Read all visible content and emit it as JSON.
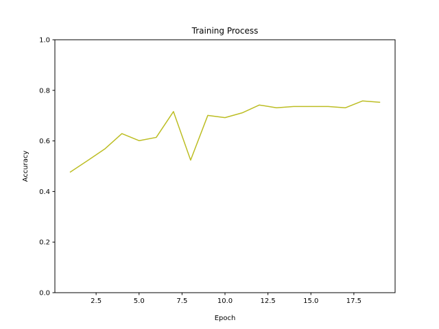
{
  "chart_data": {
    "type": "line",
    "title": "Training Process",
    "xlabel": "Epoch",
    "ylabel": "Accuracy",
    "xlim": [
      0.1,
      19.9
    ],
    "ylim": [
      0.0,
      1.0
    ],
    "xticks": [
      2.5,
      5.0,
      7.5,
      10.0,
      12.5,
      15.0,
      17.5
    ],
    "xtick_labels": [
      "2.5",
      "5.0",
      "7.5",
      "10.0",
      "12.5",
      "15.0",
      "17.5"
    ],
    "yticks": [
      0.0,
      0.2,
      0.4,
      0.6,
      0.8,
      1.0
    ],
    "ytick_labels": [
      "0.0",
      "0.2",
      "0.4",
      "0.6",
      "0.8",
      "1.0"
    ],
    "grid": false,
    "series": [
      {
        "color": "#bcbd22",
        "x": [
          1,
          2,
          3,
          4,
          5,
          6,
          7,
          8,
          9,
          10,
          11,
          12,
          13,
          14,
          15,
          16,
          17,
          18,
          19
        ],
        "values": [
          0.477,
          0.522,
          0.568,
          0.629,
          0.601,
          0.614,
          0.716,
          0.524,
          0.701,
          0.692,
          0.711,
          0.742,
          0.731,
          0.736,
          0.736,
          0.736,
          0.731,
          0.758,
          0.753
        ]
      }
    ]
  }
}
